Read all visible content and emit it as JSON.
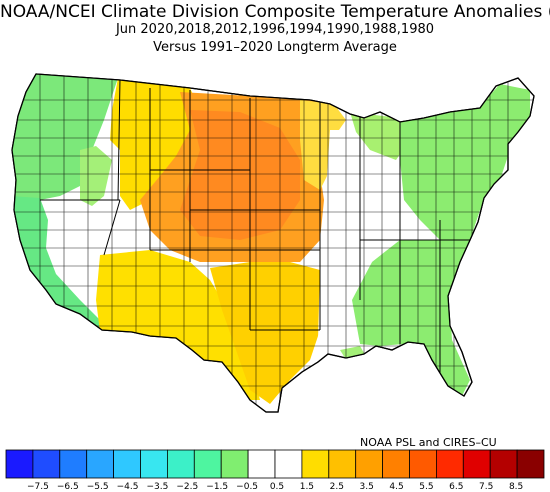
{
  "title": "NOAA/NCEI Climate Division Composite Temperature Anomalies (F)",
  "subtitle": "Jun   2020,2018,2012,1996,1994,1990,1988,1980",
  "baseline": "Versus 1991–2020 Longterm Average",
  "credit": "NOAA PSL and CIRES–CU",
  "colorbar": {
    "ticks": [
      "−7.5",
      "−6.5",
      "−5.5",
      "−4.5",
      "−3.5",
      "−2.5",
      "−1.5",
      "−0.5",
      "0.5",
      "1.5",
      "2.5",
      "3.5",
      "4.5",
      "5.5",
      "6.5",
      "7.5",
      "8.5"
    ],
    "colors": [
      "#1a1aff",
      "#1f4dff",
      "#1f7dff",
      "#29a6ff",
      "#2fc8ff",
      "#38e6f0",
      "#3cf0c8",
      "#4ef5a0",
      "#80ee70",
      "#ffffff",
      "#ffffff",
      "#ffdd00",
      "#ffc000",
      "#ffa000",
      "#ff8000",
      "#ff5a00",
      "#ff2a00",
      "#e00000",
      "#b40000",
      "#8a0000"
    ]
  },
  "regions": [
    {
      "name": "pacific-northwest",
      "anomaly": -0.7,
      "color": "#7ce87a"
    },
    {
      "name": "california-coast",
      "anomaly": -1.0,
      "color": "#66e884"
    },
    {
      "name": "great-basin",
      "anomaly": 0.0,
      "color": "#ffffff"
    },
    {
      "name": "northern-rockies",
      "anomaly": 1.7,
      "color": "#ffdd00"
    },
    {
      "name": "northern-plains",
      "anomaly": 3.0,
      "color": "#ffa020"
    },
    {
      "name": "central-plains",
      "anomaly": 3.2,
      "color": "#ff9a20"
    },
    {
      "name": "southwest",
      "anomaly": 1.6,
      "color": "#ffe000"
    },
    {
      "name": "southern-plains",
      "anomaly": 2.0,
      "color": "#ffd000"
    },
    {
      "name": "midwest",
      "anomaly": 0.0,
      "color": "#ffffff"
    },
    {
      "name": "great-lakes",
      "anomaly": -0.6,
      "color": "#a8f070"
    },
    {
      "name": "northeast",
      "anomaly": -0.7,
      "color": "#8cec70"
    },
    {
      "name": "southeast",
      "anomaly": -0.7,
      "color": "#8cec70"
    },
    {
      "name": "gulf-coast",
      "anomaly": 0.0,
      "color": "#ffffff"
    }
  ]
}
